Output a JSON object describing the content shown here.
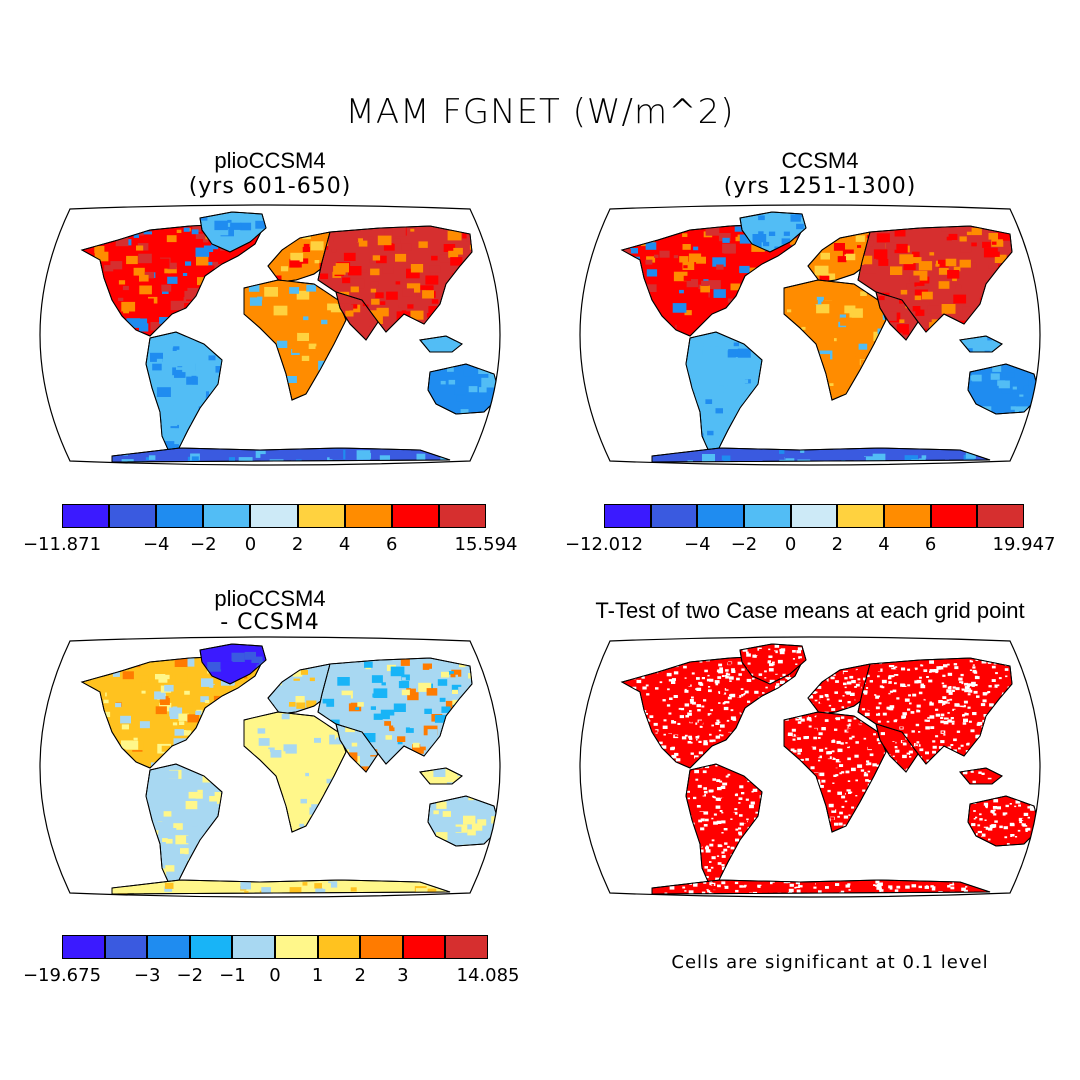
{
  "title": "MAM FGNET (W/m^2)",
  "panels": [
    {
      "title": "plioCCSM4",
      "subtitle": "(yrs 601-650)",
      "colorbar": {
        "colors": [
          "#3b1aff",
          "#3a5ae0",
          "#1f8cf0",
          "#52bdf5",
          "#cdeaf7",
          "#ffd23f",
          "#ff8c00",
          "#ff0000",
          "#d62f2f"
        ],
        "labels": [
          "-11.871",
          "-4",
          "-2",
          "0",
          "2",
          "4",
          "6",
          "15.594"
        ]
      }
    },
    {
      "title": "CCSM4",
      "subtitle": "(yrs 1251-1300)",
      "colorbar": {
        "colors": [
          "#3b1aff",
          "#3a5ae0",
          "#1f8cf0",
          "#52bdf5",
          "#cdeaf7",
          "#ffd23f",
          "#ff8c00",
          "#ff0000",
          "#d62f2f"
        ],
        "labels": [
          "-12.012",
          "-4",
          "-2",
          "0",
          "2",
          "4",
          "6",
          "19.947"
        ]
      }
    },
    {
      "title": "plioCCSM4",
      "subtitle": "- CCSM4",
      "colorbar": {
        "colors": [
          "#3b1aff",
          "#3a5ae0",
          "#1f8cf0",
          "#18b4f7",
          "#a8d8f2",
          "#fff78a",
          "#ffc21f",
          "#ff7b00",
          "#ff0000",
          "#d62f2f"
        ],
        "labels": [
          "-19.675",
          "-3",
          "-2",
          "-1",
          "0",
          "1",
          "2",
          "3",
          "14.085"
        ]
      }
    },
    {
      "title": "T-Test of two Case means at each grid point",
      "note": "Cells are significant at 0.1 level"
    }
  ]
}
